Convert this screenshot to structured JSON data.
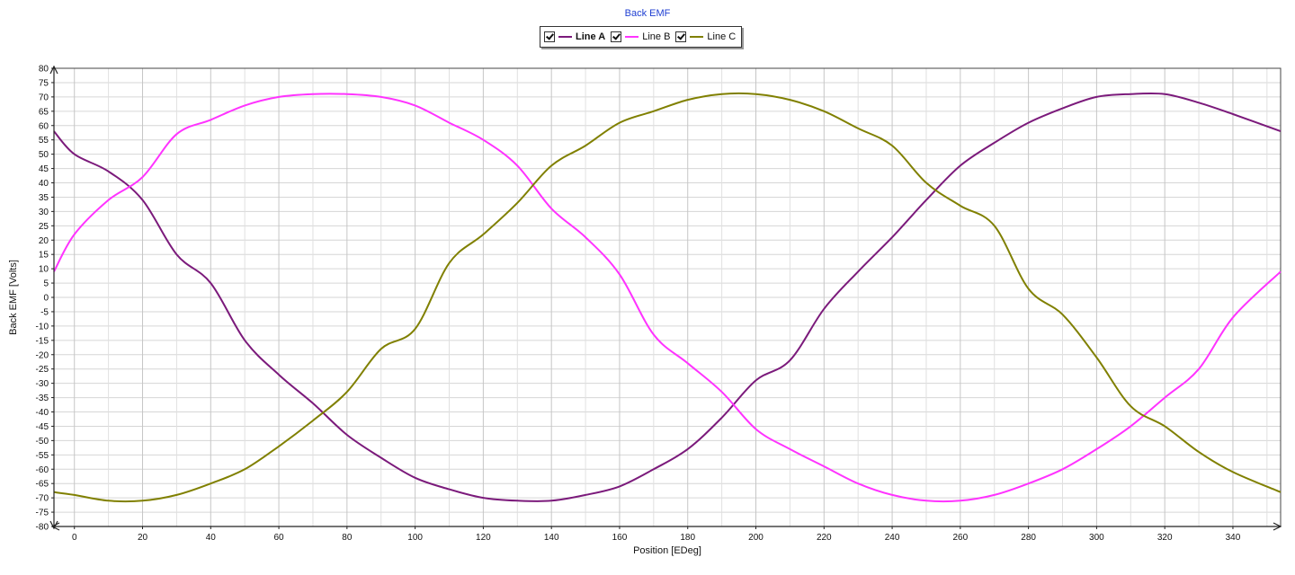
{
  "chart_data": {
    "type": "line",
    "title": "Back EMF",
    "xlabel": "Position [EDeg]",
    "ylabel": "Back EMF [Volts]",
    "xlim": [
      -6,
      354
    ],
    "ylim": [
      -80,
      80
    ],
    "x_ticks": [
      0,
      20,
      40,
      60,
      80,
      100,
      120,
      140,
      160,
      180,
      200,
      220,
      240,
      260,
      280,
      300,
      320,
      340
    ],
    "y_ticks": [
      80,
      75,
      70,
      65,
      60,
      55,
      50,
      45,
      40,
      35,
      30,
      25,
      20,
      15,
      10,
      5,
      0,
      -5,
      -10,
      -15,
      -20,
      -25,
      -30,
      -35,
      -40,
      -45,
      -50,
      -55,
      -60,
      -65,
      -70,
      -75,
      -80
    ],
    "x_tick_step": 20,
    "y_tick_step": 5,
    "x_minor_grid_step": 10,
    "grid": true,
    "legend": "top-center",
    "series": [
      {
        "name": "Line A",
        "color": "#7b1a7b",
        "bold_label": true,
        "x": [
          -6,
          0,
          10,
          20,
          30,
          40,
          50,
          60,
          70,
          80,
          90,
          100,
          110,
          120,
          130,
          140,
          150,
          160,
          170,
          180,
          190,
          200,
          210,
          220,
          230,
          240,
          250,
          260,
          270,
          280,
          290,
          300,
          310,
          320,
          330,
          340,
          354
        ],
        "y": [
          58,
          50,
          44,
          34,
          15,
          5,
          -15,
          -27,
          -37,
          -48,
          -56,
          -63,
          -67,
          -70,
          -71,
          -71,
          -69,
          -66,
          -60,
          -53,
          -42,
          -29,
          -22,
          -4,
          9,
          21,
          34,
          46,
          54,
          61,
          66,
          70,
          71,
          71,
          68,
          64,
          58
        ]
      },
      {
        "name": "Line B",
        "color": "#ff33ff",
        "bold_label": false,
        "x": [
          -6,
          0,
          10,
          20,
          30,
          40,
          50,
          60,
          70,
          80,
          90,
          100,
          110,
          120,
          130,
          140,
          150,
          160,
          170,
          180,
          190,
          200,
          210,
          220,
          230,
          240,
          250,
          260,
          270,
          280,
          290,
          300,
          310,
          320,
          330,
          340,
          354
        ],
        "y": [
          9,
          22,
          34,
          42,
          57,
          62,
          67,
          70,
          71,
          71,
          70,
          67,
          61,
          55,
          46,
          31,
          21,
          8,
          -13,
          -23,
          -33,
          -46,
          -53,
          -59,
          -65,
          -69,
          -71,
          -71,
          -69,
          -65,
          -60,
          -53,
          -45,
          -35,
          -25,
          -7,
          9
        ]
      },
      {
        "name": "Line C",
        "color": "#808000",
        "bold_label": false,
        "x": [
          -6,
          0,
          10,
          20,
          30,
          40,
          50,
          60,
          70,
          80,
          90,
          100,
          110,
          120,
          130,
          140,
          150,
          160,
          170,
          180,
          190,
          200,
          210,
          220,
          230,
          240,
          250,
          260,
          270,
          280,
          290,
          300,
          310,
          320,
          330,
          340,
          354
        ],
        "y": [
          -68,
          -69,
          -71,
          -71,
          -69,
          -65,
          -60,
          -52,
          -43,
          -33,
          -18,
          -11,
          12,
          22,
          33,
          46,
          53,
          61,
          65,
          69,
          71,
          71,
          69,
          65,
          59,
          53,
          40,
          32,
          25,
          3,
          -6,
          -21,
          -38,
          -45,
          -54,
          -61,
          -68
        ]
      }
    ]
  }
}
